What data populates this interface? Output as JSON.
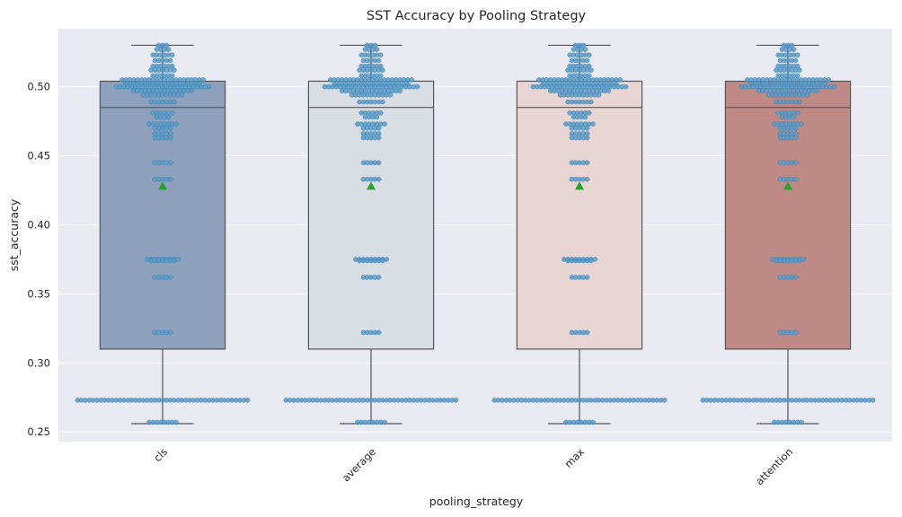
{
  "chart_data": {
    "type": "box",
    "title": "SST Accuracy by Pooling Strategy",
    "xlabel": "pooling_strategy",
    "ylabel": "sst_accuracy",
    "categories": [
      "cls",
      "average",
      "max",
      "attention"
    ],
    "ylim": [
      0.243,
      0.542
    ],
    "yticks": [
      0.25,
      0.3,
      0.35,
      0.4,
      0.45,
      0.5
    ],
    "ytick_labels": [
      "0.25",
      "0.30",
      "0.35",
      "0.40",
      "0.45",
      "0.50"
    ],
    "grid": true,
    "x_tick_rotation": -45,
    "colors": {
      "background": "#eaeaf2",
      "grid": "#ffffff",
      "box_edge": "#555555",
      "swarm_point": "#5b9ac6",
      "swarm_point_edge": "#1f77b4",
      "mean_marker": "#2ca02c",
      "box_fills": [
        "#8da1bd",
        "#d9dde4",
        "#e8d5d4",
        "#bf8a86"
      ]
    },
    "boxes": [
      {
        "category": "cls",
        "whisker_low": 0.256,
        "q1": 0.31,
        "median": 0.485,
        "q3": 0.504,
        "whisker_high": 0.53,
        "mean": 0.428
      },
      {
        "category": "average",
        "whisker_low": 0.256,
        "q1": 0.31,
        "median": 0.485,
        "q3": 0.504,
        "whisker_high": 0.53,
        "mean": 0.428
      },
      {
        "category": "max",
        "whisker_low": 0.256,
        "q1": 0.31,
        "median": 0.485,
        "q3": 0.504,
        "whisker_high": 0.53,
        "mean": 0.428
      },
      {
        "category": "attention",
        "whisker_low": 0.256,
        "q1": 0.31,
        "median": 0.485,
        "q3": 0.504,
        "whisker_high": 0.53,
        "mean": 0.428
      }
    ],
    "swarm_distribution": {
      "note_values_are_same_for_each_category": true,
      "levels": [
        {
          "value": 0.53,
          "count": 3
        },
        {
          "value": 0.527,
          "count": 4
        },
        {
          "value": 0.523,
          "count": 6
        },
        {
          "value": 0.519,
          "count": 5
        },
        {
          "value": 0.515,
          "count": 6
        },
        {
          "value": 0.512,
          "count": 7
        },
        {
          "value": 0.508,
          "count": 6
        },
        {
          "value": 0.505,
          "count": 22
        },
        {
          "value": 0.502,
          "count": 20
        },
        {
          "value": 0.5,
          "count": 25
        },
        {
          "value": 0.497,
          "count": 16
        },
        {
          "value": 0.494,
          "count": 11
        },
        {
          "value": 0.489,
          "count": 7
        },
        {
          "value": 0.481,
          "count": 6
        },
        {
          "value": 0.478,
          "count": 4
        },
        {
          "value": 0.473,
          "count": 8
        },
        {
          "value": 0.47,
          "count": 5
        },
        {
          "value": 0.466,
          "count": 5
        },
        {
          "value": 0.463,
          "count": 5
        },
        {
          "value": 0.445,
          "count": 5
        },
        {
          "value": 0.433,
          "count": 5
        },
        {
          "value": 0.375,
          "count": 9
        },
        {
          "value": 0.374,
          "count": 7
        },
        {
          "value": 0.362,
          "count": 5
        },
        {
          "value": 0.322,
          "count": 5
        },
        {
          "value": 0.273,
          "count": 45
        },
        {
          "value": 0.257,
          "count": 8
        }
      ]
    }
  }
}
